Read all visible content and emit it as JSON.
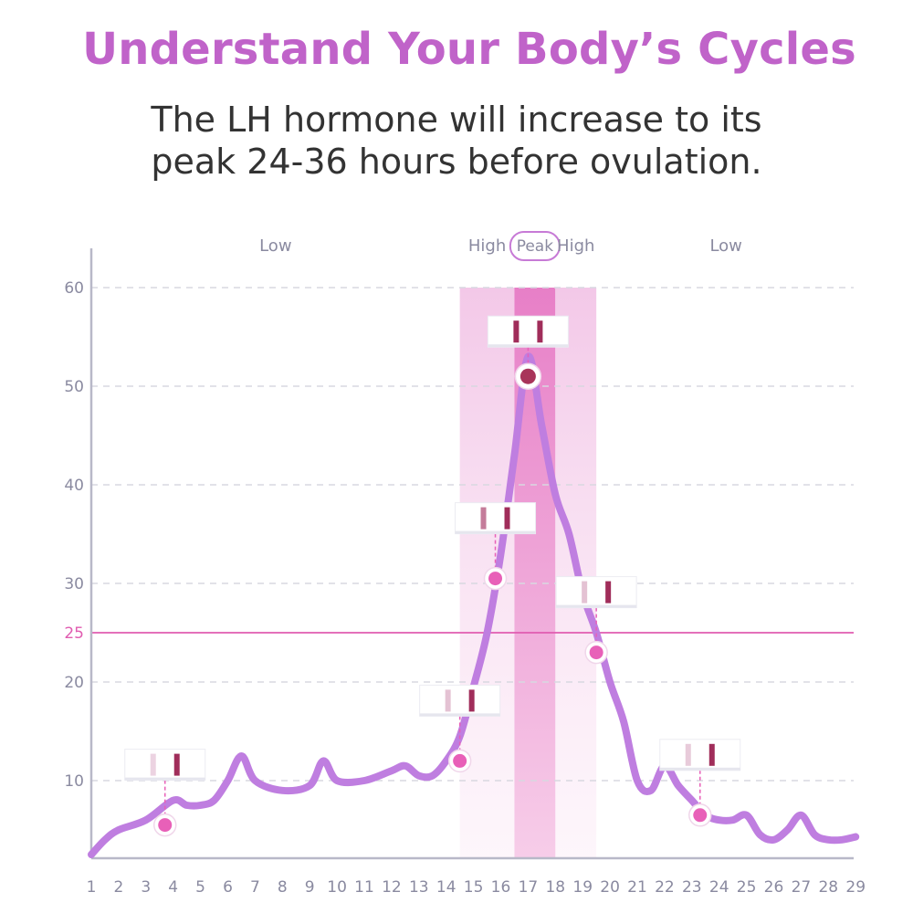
{
  "header": {
    "title": "Understand Your Body’s Cycles",
    "subtitle_line1": "The LH hormone will increase to its",
    "subtitle_line2": "peak 24-36 hours before ovulation."
  },
  "colors": {
    "title": "#c063c9",
    "line": "#bf7ee0",
    "marker": "#e860b8",
    "peak_marker": "#a8345a",
    "threshold": "#e05cb0",
    "grid": "#d8d8e0"
  },
  "chart_data": {
    "type": "line",
    "title": "",
    "xlabel": "",
    "ylabel": "",
    "x": [
      1,
      1.5,
      2,
      3,
      4,
      4.5,
      5,
      5.5,
      6,
      6.5,
      7,
      8,
      9,
      9.5,
      10,
      11,
      12,
      12.5,
      13,
      13.5,
      14,
      14.5,
      15,
      15.5,
      16,
      16.5,
      17,
      17.5,
      18,
      18.5,
      19,
      19.5,
      20,
      20.5,
      21,
      21.5,
      22,
      22.5,
      23,
      23.5,
      24,
      24.5,
      25,
      25.5,
      26,
      26.5,
      27,
      27.5,
      28,
      28.5,
      29
    ],
    "y": [
      2.5,
      4,
      5,
      6,
      8,
      7.5,
      7.5,
      8,
      10,
      12.5,
      10,
      9,
      9.5,
      12,
      10,
      10,
      11,
      11.5,
      10.5,
      10.5,
      12,
      14.5,
      19.5,
      25,
      33,
      43,
      53,
      46,
      39,
      35,
      29,
      25,
      20,
      16,
      10,
      9,
      11.5,
      9.5,
      8,
      6.5,
      6,
      6,
      6.5,
      4.5,
      4,
      5,
      6.5,
      4.5,
      4,
      4,
      4.3
    ],
    "xticks": [
      "1",
      "2",
      "3",
      "4",
      "5",
      "6",
      "7",
      "8",
      "9",
      "10",
      "11",
      "12",
      "13",
      "14",
      "15",
      "16",
      "17",
      "18",
      "19",
      "20",
      "21",
      "22",
      "23",
      "24",
      "25",
      "26",
      "27",
      "28",
      "29"
    ],
    "yticks": [
      "10",
      "20",
      "30",
      "40",
      "50",
      "60"
    ],
    "threshold": {
      "value": 25,
      "label": "25"
    },
    "xlim": [
      1,
      29
    ],
    "ylim": [
      0,
      60
    ],
    "grid": true,
    "markers": [
      {
        "x": 3.7,
        "y": 5.5,
        "kind": "low"
      },
      {
        "x": 14.5,
        "y": 12,
        "kind": "normal"
      },
      {
        "x": 15.8,
        "y": 30.5,
        "kind": "normal"
      },
      {
        "x": 17,
        "y": 51,
        "kind": "peak"
      },
      {
        "x": 19.5,
        "y": 23,
        "kind": "normal"
      },
      {
        "x": 23.3,
        "y": 6.5,
        "kind": "low"
      }
    ],
    "zones": [
      {
        "label": "Low",
        "from": 1,
        "to": 14.5,
        "level": "low"
      },
      {
        "label": "High",
        "from": 14.5,
        "to": 16.5,
        "level": "high"
      },
      {
        "label": "Peak",
        "from": 16.5,
        "to": 18,
        "level": "peak"
      },
      {
        "label": "High",
        "from": 18,
        "to": 19.5,
        "level": "high"
      },
      {
        "label": "Low",
        "from": 19.5,
        "to": 29,
        "level": "low"
      }
    ],
    "test_strips": [
      {
        "marker": 0,
        "test_line": 0.05,
        "control_line": 1.0
      },
      {
        "marker": 1,
        "test_line": 0.15,
        "control_line": 1.0
      },
      {
        "marker": 2,
        "test_line": 0.55,
        "control_line": 1.0
      },
      {
        "marker": 3,
        "test_line": 1.0,
        "control_line": 1.0
      },
      {
        "marker": 4,
        "test_line": 0.15,
        "control_line": 1.0
      },
      {
        "marker": 5,
        "test_line": 0.1,
        "control_line": 1.0
      }
    ]
  }
}
